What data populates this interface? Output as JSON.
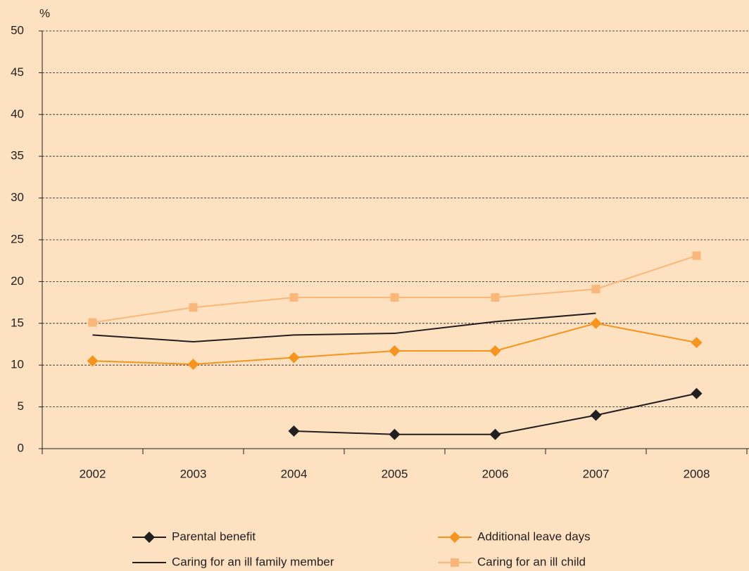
{
  "chart_data": {
    "type": "line",
    "y_label": "%",
    "categories": [
      "2002",
      "2003",
      "2004",
      "2005",
      "2006",
      "2007",
      "2008"
    ],
    "series": [
      {
        "name": "Parental benefit",
        "color": "#231f20",
        "marker": "diamond",
        "values": [
          null,
          null,
          2.1,
          1.7,
          1.7,
          4.0,
          6.6
        ]
      },
      {
        "name": "Additional leave days",
        "color": "#f7941d",
        "marker": "diamond",
        "values": [
          10.5,
          10.1,
          10.9,
          11.7,
          11.7,
          15.0,
          12.7
        ]
      },
      {
        "name": "Caring for an ill family member",
        "color": "#231f20",
        "marker": "none",
        "values": [
          13.6,
          12.8,
          13.6,
          13.8,
          15.2,
          16.2,
          null
        ]
      },
      {
        "name": "Caring for an ill child",
        "color": "#fbb77a",
        "marker": "square",
        "values": [
          15.1,
          16.9,
          18.1,
          18.1,
          18.1,
          19.1,
          23.1
        ]
      }
    ],
    "ylim": [
      0,
      50
    ],
    "yticks": [
      0,
      5,
      10,
      15,
      20,
      25,
      30,
      35,
      40,
      45,
      50
    ],
    "grid": true
  }
}
